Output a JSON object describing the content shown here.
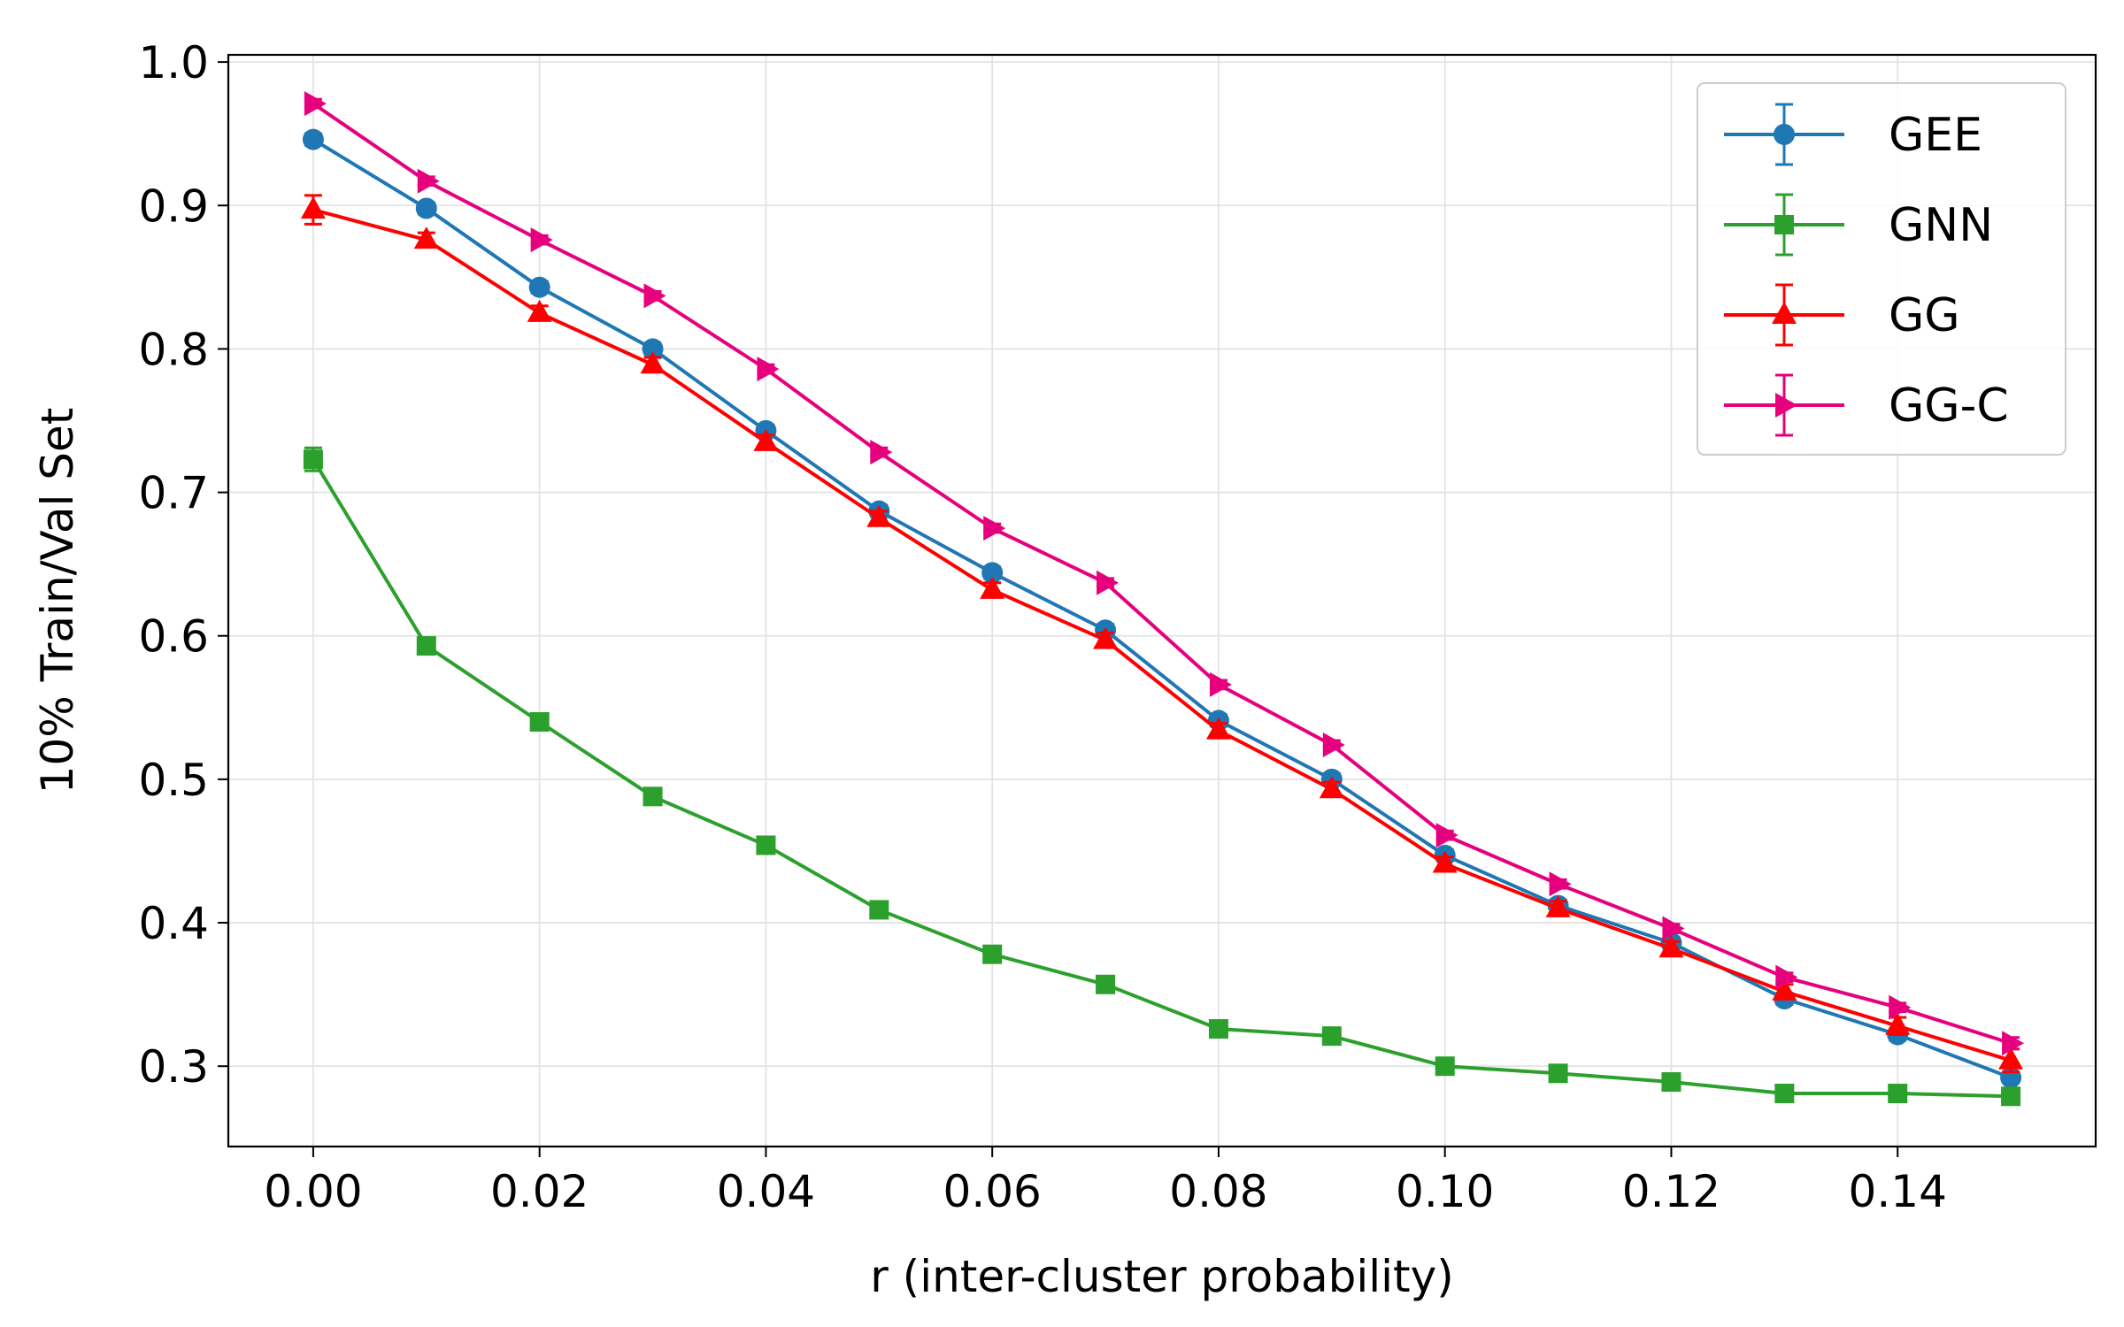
{
  "chart_data": {
    "type": "line",
    "title": "",
    "xlabel": "r (inter-cluster probability)",
    "ylabel": "10% Train/Val Set",
    "xlim": [
      -0.0075,
      0.1575
    ],
    "ylim": [
      0.244,
      1.005
    ],
    "x_ticks": [
      0.0,
      0.02,
      0.04,
      0.06,
      0.08,
      0.1,
      0.12,
      0.14
    ],
    "x_tick_labels": [
      "0.00",
      "0.02",
      "0.04",
      "0.06",
      "0.08",
      "0.10",
      "0.12",
      "0.14"
    ],
    "y_ticks": [
      0.3,
      0.4,
      0.5,
      0.6,
      0.7,
      0.8,
      0.9,
      1.0
    ],
    "y_tick_labels": [
      "0.3",
      "0.4",
      "0.5",
      "0.6",
      "0.7",
      "0.8",
      "0.9",
      "1.0"
    ],
    "grid": true,
    "legend_position": "top-right",
    "x": [
      0.0,
      0.01,
      0.02,
      0.03,
      0.04,
      0.05,
      0.06,
      0.07,
      0.08,
      0.09,
      0.1,
      0.11,
      0.12,
      0.13,
      0.14,
      0.15
    ],
    "series": [
      {
        "name": "GEE",
        "color": "#1f77b4",
        "marker": "circle",
        "values": [
          0.946,
          0.898,
          0.843,
          0.8,
          0.743,
          0.687,
          0.644,
          0.604,
          0.541,
          0.5,
          0.447,
          0.412,
          0.386,
          0.347,
          0.322,
          0.292
        ],
        "errors": [
          0.004,
          0.004,
          0.004,
          0.004,
          0.004,
          0.004,
          0.004,
          0.004,
          0.004,
          0.004,
          0.004,
          0.004,
          0.004,
          0.004,
          0.004,
          0.008
        ]
      },
      {
        "name": "GNN",
        "color": "#2ca02c",
        "marker": "square",
        "values": [
          0.723,
          0.593,
          0.54,
          0.488,
          0.454,
          0.409,
          0.378,
          0.357,
          0.326,
          0.321,
          0.3,
          0.295,
          0.289,
          0.281,
          0.281,
          0.279
        ],
        "errors": [
          0.008,
          0.005,
          0.005,
          0.005,
          0.005,
          0.005,
          0.005,
          0.005,
          0.005,
          0.005,
          0.005,
          0.005,
          0.005,
          0.005,
          0.005,
          0.005
        ]
      },
      {
        "name": "GG",
        "color": "#ff0000",
        "marker": "triangle-up",
        "values": [
          0.897,
          0.876,
          0.825,
          0.789,
          0.735,
          0.682,
          0.632,
          0.597,
          0.534,
          0.493,
          0.441,
          0.41,
          0.382,
          0.352,
          0.328,
          0.304
        ],
        "errors": [
          0.01,
          0.005,
          0.005,
          0.005,
          0.005,
          0.005,
          0.005,
          0.005,
          0.005,
          0.005,
          0.005,
          0.005,
          0.005,
          0.005,
          0.006,
          0.008
        ]
      },
      {
        "name": "GG-C",
        "color": "#e6007e",
        "marker": "triangle-right",
        "values": [
          0.971,
          0.917,
          0.876,
          0.837,
          0.786,
          0.728,
          0.675,
          0.637,
          0.566,
          0.524,
          0.461,
          0.427,
          0.396,
          0.362,
          0.341,
          0.316
        ],
        "errors": [
          0.003,
          0.003,
          0.003,
          0.003,
          0.003,
          0.003,
          0.003,
          0.003,
          0.003,
          0.003,
          0.003,
          0.003,
          0.003,
          0.003,
          0.003,
          0.004
        ]
      }
    ]
  }
}
